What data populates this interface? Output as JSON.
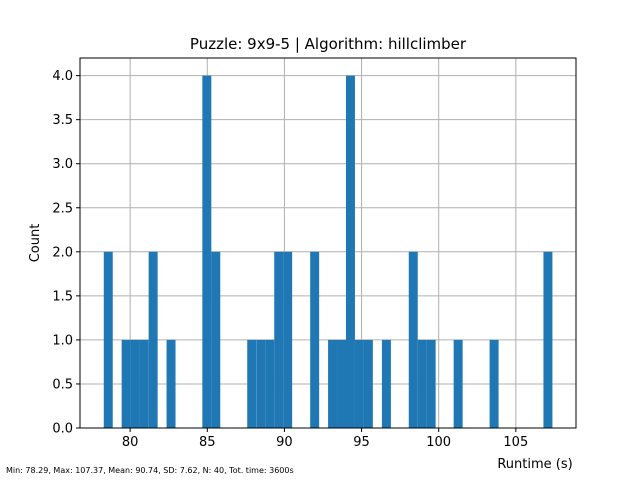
{
  "chart_data": {
    "type": "bar",
    "title": "Puzzle: 9x9-5 | Algorithm: hillclimber",
    "xlabel": "Runtime (s)",
    "ylabel": "Count",
    "xlim": [
      76.75,
      108.9
    ],
    "ylim": [
      0,
      4.2
    ],
    "grid": true,
    "bar_color": "#1f77b4",
    "bin_width": 0.5818,
    "x_ticks": [
      80,
      85,
      90,
      95,
      100,
      105
    ],
    "x_tick_labels": [
      "80",
      "85",
      "90",
      "95",
      "100",
      "105"
    ],
    "y_ticks": [
      0,
      0.5,
      1,
      1.5,
      2,
      2.5,
      3,
      3.5,
      4
    ],
    "y_tick_labels": [
      "0.0",
      "0.5",
      "1.0",
      "1.5",
      "2.0",
      "2.5",
      "3.0",
      "3.5",
      "4.0"
    ],
    "bins": [
      {
        "left": 78.29,
        "count": 2
      },
      {
        "left": 79.45,
        "count": 1
      },
      {
        "left": 80.03,
        "count": 1
      },
      {
        "left": 80.61,
        "count": 1
      },
      {
        "left": 81.2,
        "count": 2
      },
      {
        "left": 82.36,
        "count": 1
      },
      {
        "left": 84.68,
        "count": 4
      },
      {
        "left": 85.26,
        "count": 2
      },
      {
        "left": 87.59,
        "count": 1
      },
      {
        "left": 88.18,
        "count": 1
      },
      {
        "left": 88.76,
        "count": 1
      },
      {
        "left": 89.34,
        "count": 2
      },
      {
        "left": 89.92,
        "count": 2
      },
      {
        "left": 91.67,
        "count": 2
      },
      {
        "left": 92.83,
        "count": 1
      },
      {
        "left": 93.41,
        "count": 1
      },
      {
        "left": 93.99,
        "count": 4
      },
      {
        "left": 94.57,
        "count": 1
      },
      {
        "left": 95.15,
        "count": 1
      },
      {
        "left": 96.32,
        "count": 1
      },
      {
        "left": 98.06,
        "count": 2
      },
      {
        "left": 98.64,
        "count": 1
      },
      {
        "left": 99.22,
        "count": 1
      },
      {
        "left": 100.97,
        "count": 1
      },
      {
        "left": 103.3,
        "count": 1
      },
      {
        "left": 106.79,
        "count": 2
      }
    ]
  },
  "footer": {
    "stats": "Min: 78.29, Max: 107.37, Mean: 90.74, SD: 7.62, N: 40, Tot. time: 3600s"
  }
}
